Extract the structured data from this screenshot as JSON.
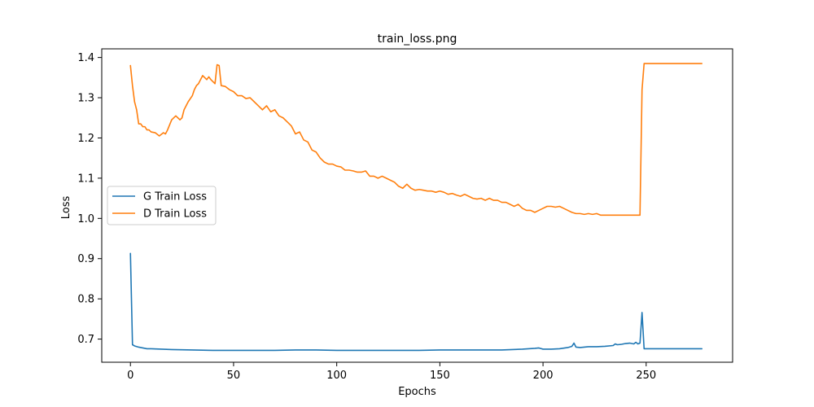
{
  "chart_data": {
    "type": "line",
    "title": "train_loss.png",
    "xlabel": "Epochs",
    "ylabel": "Loss",
    "xlim": [
      -13.9,
      291.9
    ],
    "ylim": [
      0.6425,
      1.4215
    ],
    "xticks": [
      0,
      50,
      100,
      150,
      200,
      250
    ],
    "yticks": [
      0.7,
      0.8,
      0.9,
      1.0,
      1.1,
      1.2,
      1.3,
      1.4
    ],
    "xtick_labels": [
      "0",
      "50",
      "100",
      "150",
      "200",
      "250"
    ],
    "ytick_labels": [
      "0.7",
      "0.8",
      "0.9",
      "1.0",
      "1.1",
      "1.2",
      "1.3",
      "1.4"
    ],
    "grid": false,
    "legend_position": "center-left",
    "series": [
      {
        "name": "G Train Loss",
        "color": "#1f77b4",
        "x": [
          0,
          1,
          2,
          4,
          6,
          8,
          10,
          15,
          20,
          30,
          40,
          50,
          60,
          70,
          80,
          90,
          100,
          110,
          120,
          130,
          140,
          150,
          160,
          170,
          180,
          190,
          196,
          198,
          200,
          204,
          208,
          212,
          214,
          215,
          216,
          218,
          222,
          226,
          230,
          234,
          235,
          236,
          238,
          240,
          242,
          244,
          245,
          246,
          247,
          248,
          249,
          250,
          255,
          260,
          265,
          270,
          275,
          277
        ],
        "y": [
          0.913,
          0.686,
          0.683,
          0.68,
          0.678,
          0.676,
          0.676,
          0.675,
          0.674,
          0.673,
          0.672,
          0.672,
          0.672,
          0.672,
          0.673,
          0.673,
          0.672,
          0.672,
          0.672,
          0.672,
          0.672,
          0.673,
          0.673,
          0.673,
          0.673,
          0.675,
          0.677,
          0.678,
          0.675,
          0.675,
          0.676,
          0.679,
          0.682,
          0.69,
          0.68,
          0.679,
          0.681,
          0.681,
          0.682,
          0.684,
          0.688,
          0.686,
          0.687,
          0.689,
          0.69,
          0.688,
          0.692,
          0.688,
          0.69,
          0.766,
          0.676,
          0.676,
          0.676,
          0.676,
          0.676,
          0.676,
          0.676,
          0.676
        ]
      },
      {
        "name": "D Train Loss",
        "color": "#ff7f0e",
        "x": [
          0,
          1,
          2,
          3,
          4,
          5,
          6,
          7,
          8,
          9,
          10,
          12,
          14,
          16,
          17,
          18,
          20,
          22,
          24,
          25,
          26,
          28,
          30,
          31,
          32,
          33,
          34,
          35,
          36,
          37,
          38,
          39,
          40,
          41,
          42,
          43,
          44,
          46,
          48,
          50,
          52,
          54,
          56,
          58,
          60,
          62,
          64,
          66,
          68,
          70,
          72,
          74,
          76,
          78,
          80,
          82,
          84,
          86,
          88,
          90,
          92,
          94,
          96,
          98,
          100,
          102,
          104,
          106,
          108,
          110,
          112,
          114,
          116,
          118,
          120,
          122,
          124,
          126,
          128,
          130,
          132,
          134,
          136,
          138,
          140,
          142,
          144,
          146,
          148,
          150,
          152,
          154,
          156,
          158,
          160,
          162,
          164,
          166,
          168,
          170,
          172,
          174,
          176,
          178,
          180,
          182,
          184,
          186,
          188,
          190,
          192,
          194,
          196,
          198,
          200,
          202,
          204,
          206,
          208,
          210,
          212,
          214,
          216,
          218,
          220,
          222,
          224,
          226,
          228,
          230,
          232,
          234,
          236,
          238,
          240,
          242,
          244,
          246,
          247,
          248,
          249,
          250,
          255,
          260,
          265,
          270,
          275,
          277
        ],
        "y": [
          1.38,
          1.33,
          1.29,
          1.27,
          1.235,
          1.235,
          1.228,
          1.228,
          1.22,
          1.22,
          1.215,
          1.213,
          1.205,
          1.213,
          1.21,
          1.22,
          1.245,
          1.255,
          1.245,
          1.25,
          1.27,
          1.29,
          1.305,
          1.32,
          1.33,
          1.335,
          1.345,
          1.355,
          1.35,
          1.345,
          1.352,
          1.345,
          1.34,
          1.335,
          1.382,
          1.38,
          1.33,
          1.328,
          1.32,
          1.315,
          1.305,
          1.305,
          1.298,
          1.3,
          1.29,
          1.28,
          1.27,
          1.28,
          1.265,
          1.27,
          1.255,
          1.25,
          1.24,
          1.23,
          1.21,
          1.215,
          1.195,
          1.19,
          1.17,
          1.165,
          1.15,
          1.14,
          1.135,
          1.135,
          1.13,
          1.128,
          1.12,
          1.12,
          1.118,
          1.115,
          1.115,
          1.118,
          1.105,
          1.105,
          1.1,
          1.105,
          1.1,
          1.095,
          1.09,
          1.08,
          1.075,
          1.085,
          1.075,
          1.07,
          1.072,
          1.07,
          1.068,
          1.068,
          1.065,
          1.068,
          1.065,
          1.06,
          1.062,
          1.058,
          1.055,
          1.06,
          1.055,
          1.05,
          1.048,
          1.05,
          1.045,
          1.05,
          1.045,
          1.045,
          1.04,
          1.04,
          1.035,
          1.03,
          1.035,
          1.025,
          1.02,
          1.02,
          1.015,
          1.02,
          1.025,
          1.03,
          1.03,
          1.028,
          1.03,
          1.025,
          1.02,
          1.015,
          1.012,
          1.012,
          1.01,
          1.012,
          1.01,
          1.012,
          1.008,
          1.008,
          1.008,
          1.008,
          1.008,
          1.008,
          1.008,
          1.008,
          1.008,
          1.008,
          1.008,
          1.32,
          1.385,
          1.385,
          1.385,
          1.385,
          1.385,
          1.385,
          1.385,
          1.385
        ]
      }
    ]
  }
}
